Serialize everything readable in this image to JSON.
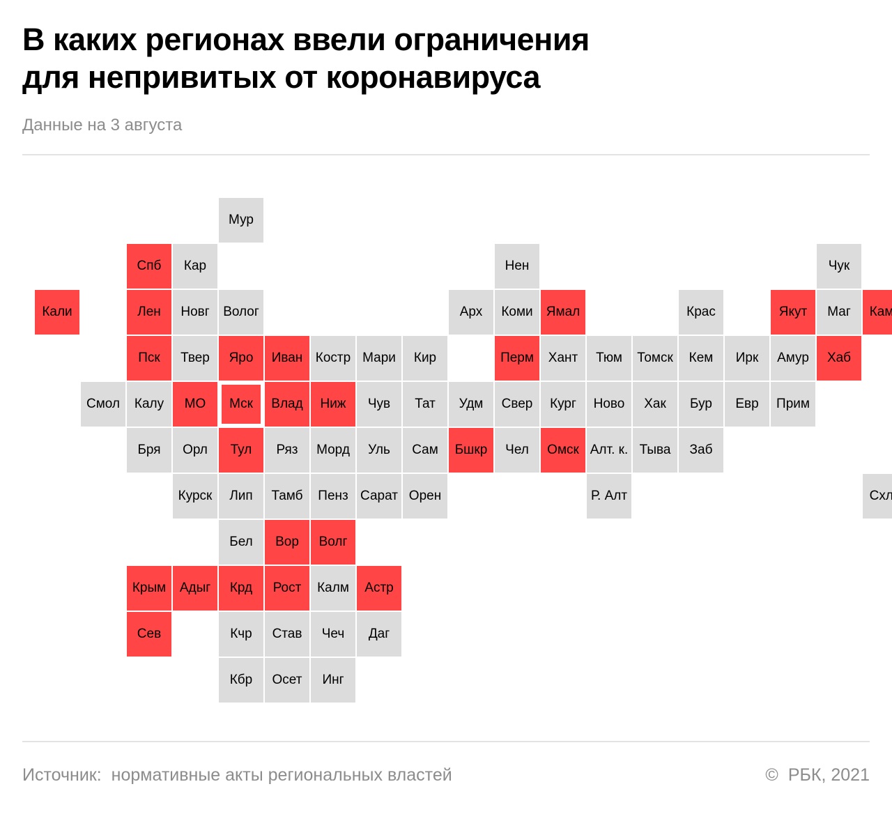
{
  "header": {
    "title_line1": "В каких регионах ввели ограничения",
    "title_line2": "для непривитых от коронавируса",
    "subtitle": "Данные на 3 августа"
  },
  "colors": {
    "restricted": "#ff4545",
    "not_restricted": "#dcdcdc"
  },
  "map": {
    "cells": [
      {
        "label": "Мур",
        "row": 0,
        "col": 4,
        "restricted": false
      },
      {
        "label": "Спб",
        "row": 1,
        "col": 2,
        "restricted": true
      },
      {
        "label": "Кар",
        "row": 1,
        "col": 3,
        "restricted": false
      },
      {
        "label": "Нен",
        "row": 1,
        "col": 10,
        "restricted": false
      },
      {
        "label": "Чук",
        "row": 1,
        "col": 17,
        "restricted": false
      },
      {
        "label": "Кали",
        "row": 2,
        "col": 0,
        "restricted": true
      },
      {
        "label": "Лен",
        "row": 2,
        "col": 2,
        "restricted": true
      },
      {
        "label": "Новг",
        "row": 2,
        "col": 3,
        "restricted": false
      },
      {
        "label": "Волог",
        "row": 2,
        "col": 4,
        "restricted": false
      },
      {
        "label": "Арх",
        "row": 2,
        "col": 9,
        "restricted": false
      },
      {
        "label": "Коми",
        "row": 2,
        "col": 10,
        "restricted": false
      },
      {
        "label": "Ямал",
        "row": 2,
        "col": 11,
        "restricted": true
      },
      {
        "label": "Крас",
        "row": 2,
        "col": 14,
        "restricted": false
      },
      {
        "label": "Якут",
        "row": 2,
        "col": 16,
        "restricted": true
      },
      {
        "label": "Маг",
        "row": 2,
        "col": 17,
        "restricted": false
      },
      {
        "label": "Камч",
        "row": 2,
        "col": 18,
        "restricted": true
      },
      {
        "label": "Пск",
        "row": 3,
        "col": 2,
        "restricted": true
      },
      {
        "label": "Твер",
        "row": 3,
        "col": 3,
        "restricted": false
      },
      {
        "label": "Яро",
        "row": 3,
        "col": 4,
        "restricted": true
      },
      {
        "label": "Иван",
        "row": 3,
        "col": 5,
        "restricted": true
      },
      {
        "label": "Костр",
        "row": 3,
        "col": 6,
        "restricted": false
      },
      {
        "label": "Мари",
        "row": 3,
        "col": 7,
        "restricted": false
      },
      {
        "label": "Кир",
        "row": 3,
        "col": 8,
        "restricted": false
      },
      {
        "label": "Перм",
        "row": 3,
        "col": 10,
        "restricted": true
      },
      {
        "label": "Хант",
        "row": 3,
        "col": 11,
        "restricted": false
      },
      {
        "label": "Тюм",
        "row": 3,
        "col": 12,
        "restricted": false
      },
      {
        "label": "Томск",
        "row": 3,
        "col": 13,
        "restricted": false
      },
      {
        "label": "Кем",
        "row": 3,
        "col": 14,
        "restricted": false
      },
      {
        "label": "Ирк",
        "row": 3,
        "col": 15,
        "restricted": false
      },
      {
        "label": "Амур",
        "row": 3,
        "col": 16,
        "restricted": false
      },
      {
        "label": "Хаб",
        "row": 3,
        "col": 17,
        "restricted": true
      },
      {
        "label": "Смол",
        "row": 4,
        "col": 1,
        "restricted": false
      },
      {
        "label": "Калу",
        "row": 4,
        "col": 2,
        "restricted": false
      },
      {
        "label": "МО",
        "row": 4,
        "col": 3,
        "restricted": true
      },
      {
        "label": "Мск",
        "row": 4,
        "col": 4,
        "restricted": true,
        "capital": true
      },
      {
        "label": "Влад",
        "row": 4,
        "col": 5,
        "restricted": true
      },
      {
        "label": "Ниж",
        "row": 4,
        "col": 6,
        "restricted": true
      },
      {
        "label": "Чув",
        "row": 4,
        "col": 7,
        "restricted": false
      },
      {
        "label": "Тат",
        "row": 4,
        "col": 8,
        "restricted": false
      },
      {
        "label": "Удм",
        "row": 4,
        "col": 9,
        "restricted": false
      },
      {
        "label": "Свер",
        "row": 4,
        "col": 10,
        "restricted": false
      },
      {
        "label": "Кург",
        "row": 4,
        "col": 11,
        "restricted": false
      },
      {
        "label": "Ново",
        "row": 4,
        "col": 12,
        "restricted": false
      },
      {
        "label": "Хак",
        "row": 4,
        "col": 13,
        "restricted": false
      },
      {
        "label": "Бур",
        "row": 4,
        "col": 14,
        "restricted": false
      },
      {
        "label": "Евр",
        "row": 4,
        "col": 15,
        "restricted": false
      },
      {
        "label": "Прим",
        "row": 4,
        "col": 16,
        "restricted": false
      },
      {
        "label": "Бря",
        "row": 5,
        "col": 2,
        "restricted": false
      },
      {
        "label": "Орл",
        "row": 5,
        "col": 3,
        "restricted": false
      },
      {
        "label": "Тул",
        "row": 5,
        "col": 4,
        "restricted": true
      },
      {
        "label": "Ряз",
        "row": 5,
        "col": 5,
        "restricted": false
      },
      {
        "label": "Морд",
        "row": 5,
        "col": 6,
        "restricted": false
      },
      {
        "label": "Уль",
        "row": 5,
        "col": 7,
        "restricted": false
      },
      {
        "label": "Сам",
        "row": 5,
        "col": 8,
        "restricted": false
      },
      {
        "label": "Бшкр",
        "row": 5,
        "col": 9,
        "restricted": true
      },
      {
        "label": "Чел",
        "row": 5,
        "col": 10,
        "restricted": false
      },
      {
        "label": "Омск",
        "row": 5,
        "col": 11,
        "restricted": true
      },
      {
        "label": "Алт. к.",
        "row": 5,
        "col": 12,
        "restricted": false
      },
      {
        "label": "Тыва",
        "row": 5,
        "col": 13,
        "restricted": false
      },
      {
        "label": "Заб",
        "row": 5,
        "col": 14,
        "restricted": false
      },
      {
        "label": "Курск",
        "row": 6,
        "col": 3,
        "restricted": false
      },
      {
        "label": "Лип",
        "row": 6,
        "col": 4,
        "restricted": false
      },
      {
        "label": "Тамб",
        "row": 6,
        "col": 5,
        "restricted": false
      },
      {
        "label": "Пенз",
        "row": 6,
        "col": 6,
        "restricted": false
      },
      {
        "label": "Сарат",
        "row": 6,
        "col": 7,
        "restricted": false
      },
      {
        "label": "Орен",
        "row": 6,
        "col": 8,
        "restricted": false
      },
      {
        "label": "Р. Алт",
        "row": 6,
        "col": 12,
        "restricted": false
      },
      {
        "label": "Схлн",
        "row": 6,
        "col": 18,
        "restricted": false
      },
      {
        "label": "Бел",
        "row": 7,
        "col": 4,
        "restricted": false
      },
      {
        "label": "Вор",
        "row": 7,
        "col": 5,
        "restricted": true
      },
      {
        "label": "Волг",
        "row": 7,
        "col": 6,
        "restricted": true
      },
      {
        "label": "Крым",
        "row": 8,
        "col": 2,
        "restricted": true
      },
      {
        "label": "Адыг",
        "row": 8,
        "col": 3,
        "restricted": true
      },
      {
        "label": "Крд",
        "row": 8,
        "col": 4,
        "restricted": true
      },
      {
        "label": "Рост",
        "row": 8,
        "col": 5,
        "restricted": true
      },
      {
        "label": "Калм",
        "row": 8,
        "col": 6,
        "restricted": false
      },
      {
        "label": "Астр",
        "row": 8,
        "col": 7,
        "restricted": true
      },
      {
        "label": "Сев",
        "row": 9,
        "col": 2,
        "restricted": true
      },
      {
        "label": "Кчр",
        "row": 9,
        "col": 4,
        "restricted": false
      },
      {
        "label": "Став",
        "row": 9,
        "col": 5,
        "restricted": false
      },
      {
        "label": "Чеч",
        "row": 9,
        "col": 6,
        "restricted": false
      },
      {
        "label": "Даг",
        "row": 9,
        "col": 7,
        "restricted": false
      },
      {
        "label": "Кбр",
        "row": 10,
        "col": 4,
        "restricted": false
      },
      {
        "label": "Осет",
        "row": 10,
        "col": 5,
        "restricted": false
      },
      {
        "label": "Инг",
        "row": 10,
        "col": 6,
        "restricted": false
      }
    ]
  },
  "footer": {
    "source_label": "Источник:",
    "source_text": "нормативные акты региональных властей",
    "copyright_symbol": "©",
    "copyright_text": "РБК, 2021"
  }
}
